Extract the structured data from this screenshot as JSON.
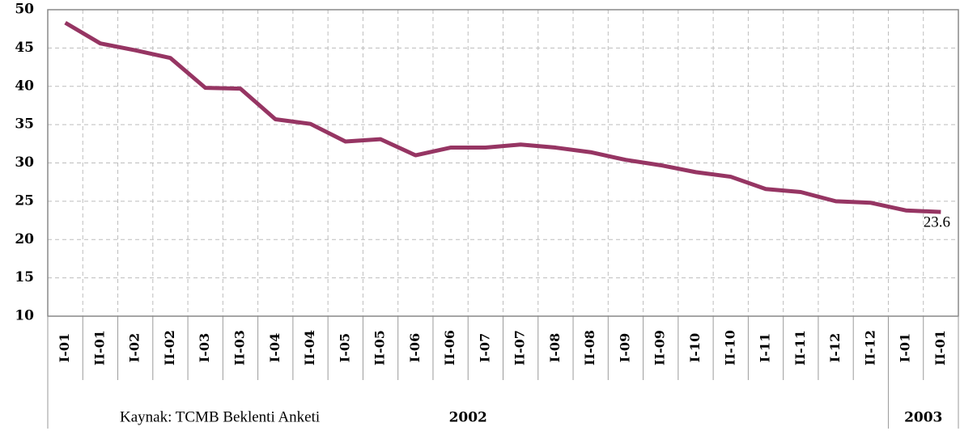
{
  "chart_data": {
    "type": "line",
    "category_groups": [
      {
        "name": "2002",
        "categories": [
          "I-01",
          "II-01",
          "I-02",
          "II-02",
          "I-03",
          "II-03",
          "I-04",
          "II-04",
          "I-05",
          "II-05",
          "I-06",
          "II-06",
          "I-07",
          "II-07",
          "I-08",
          "II-08",
          "I-09",
          "II-09",
          "I-10",
          "II-10",
          "I-11",
          "II-11",
          "I-12",
          "II-12"
        ]
      },
      {
        "name": "2003",
        "categories": [
          "I-01",
          "II-01"
        ]
      }
    ],
    "series": [
      {
        "color": "#963563",
        "values": [
          48.3,
          45.6,
          44.7,
          43.7,
          39.8,
          39.7,
          35.7,
          35.1,
          32.8,
          33.1,
          31.0,
          32.0,
          32.0,
          32.4,
          32.0,
          31.4,
          30.4,
          29.7,
          28.8,
          28.2,
          26.6,
          26.2,
          25.0,
          24.8,
          23.8,
          23.6
        ],
        "value_labels": [
          null,
          null,
          null,
          null,
          null,
          null,
          null,
          null,
          null,
          null,
          null,
          null,
          null,
          null,
          null,
          null,
          null,
          null,
          null,
          null,
          null,
          null,
          null,
          null,
          null,
          "23.6"
        ]
      }
    ],
    "ylim": [
      10,
      50
    ],
    "yticks": [
      10,
      15,
      20,
      25,
      30,
      35,
      40,
      45,
      50
    ],
    "grid": true,
    "source": "Kaynak: TCMB Beklenti Anketi"
  }
}
